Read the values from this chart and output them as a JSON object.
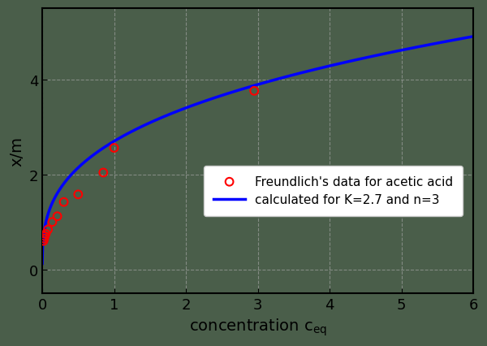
{
  "title": "",
  "xlabel": "concentration c",
  "xlabel_sub": "eq",
  "ylabel": "x/m",
  "background_color": "#4a5e4a",
  "plot_bg_color": "#4a5e4a",
  "K": 2.7,
  "n": 3,
  "xlim": [
    0,
    6
  ],
  "ylim": [
    -0.5,
    5.5
  ],
  "xticks": [
    0,
    1,
    2,
    3,
    4,
    5,
    6
  ],
  "yticks": [
    0,
    2,
    4
  ],
  "scatter_x": [
    0.018,
    0.027,
    0.035,
    0.05,
    0.08,
    0.14,
    0.21,
    0.3,
    0.5,
    0.85,
    1.0,
    2.95
  ],
  "scatter_y": [
    0.6,
    0.65,
    0.7,
    0.75,
    0.84,
    1.0,
    1.12,
    1.42,
    1.58,
    2.04,
    2.56,
    3.76
  ],
  "scatter_color": "#ff0000",
  "line_color": "#0000ff",
  "line_width": 2.5,
  "grid_color": "#aaaaaa",
  "grid_alpha": 0.6,
  "legend_scatter_label": "Freundlich's data for acetic acid",
  "legend_line_label": "calculated for K=2.7 and n=3",
  "legend_bg": "#ffffff",
  "marker_size": 7,
  "marker_lw": 1.5,
  "tick_label_color": "#000000",
  "axis_label_color": "#000000",
  "spine_color": "#000000",
  "figsize": [
    6.0,
    4.27
  ],
  "dpi": 100
}
